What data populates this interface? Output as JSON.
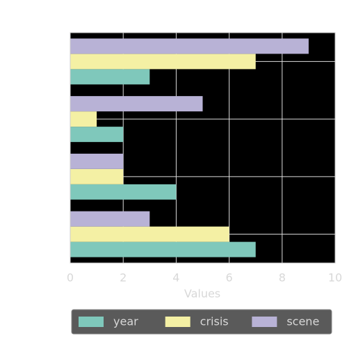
{
  "chart_data": {
    "type": "barh",
    "categories": [
      null,
      null,
      null,
      null
    ],
    "series": [
      {
        "name": "year",
        "color": "#7fc8bb",
        "values": [
          7,
          4,
          2,
          3
        ]
      },
      {
        "name": "crisis",
        "color": "#f4f0a4",
        "values": [
          6,
          2,
          1,
          7
        ]
      },
      {
        "name": "scene",
        "color": "#b8b2d6",
        "values": [
          3,
          2,
          5,
          9
        ]
      }
    ],
    "x_label": "Values",
    "xlim": [
      0,
      10
    ],
    "xticks": [
      0,
      2,
      4,
      6,
      8,
      10
    ],
    "grid": true,
    "legend": "bottom"
  }
}
